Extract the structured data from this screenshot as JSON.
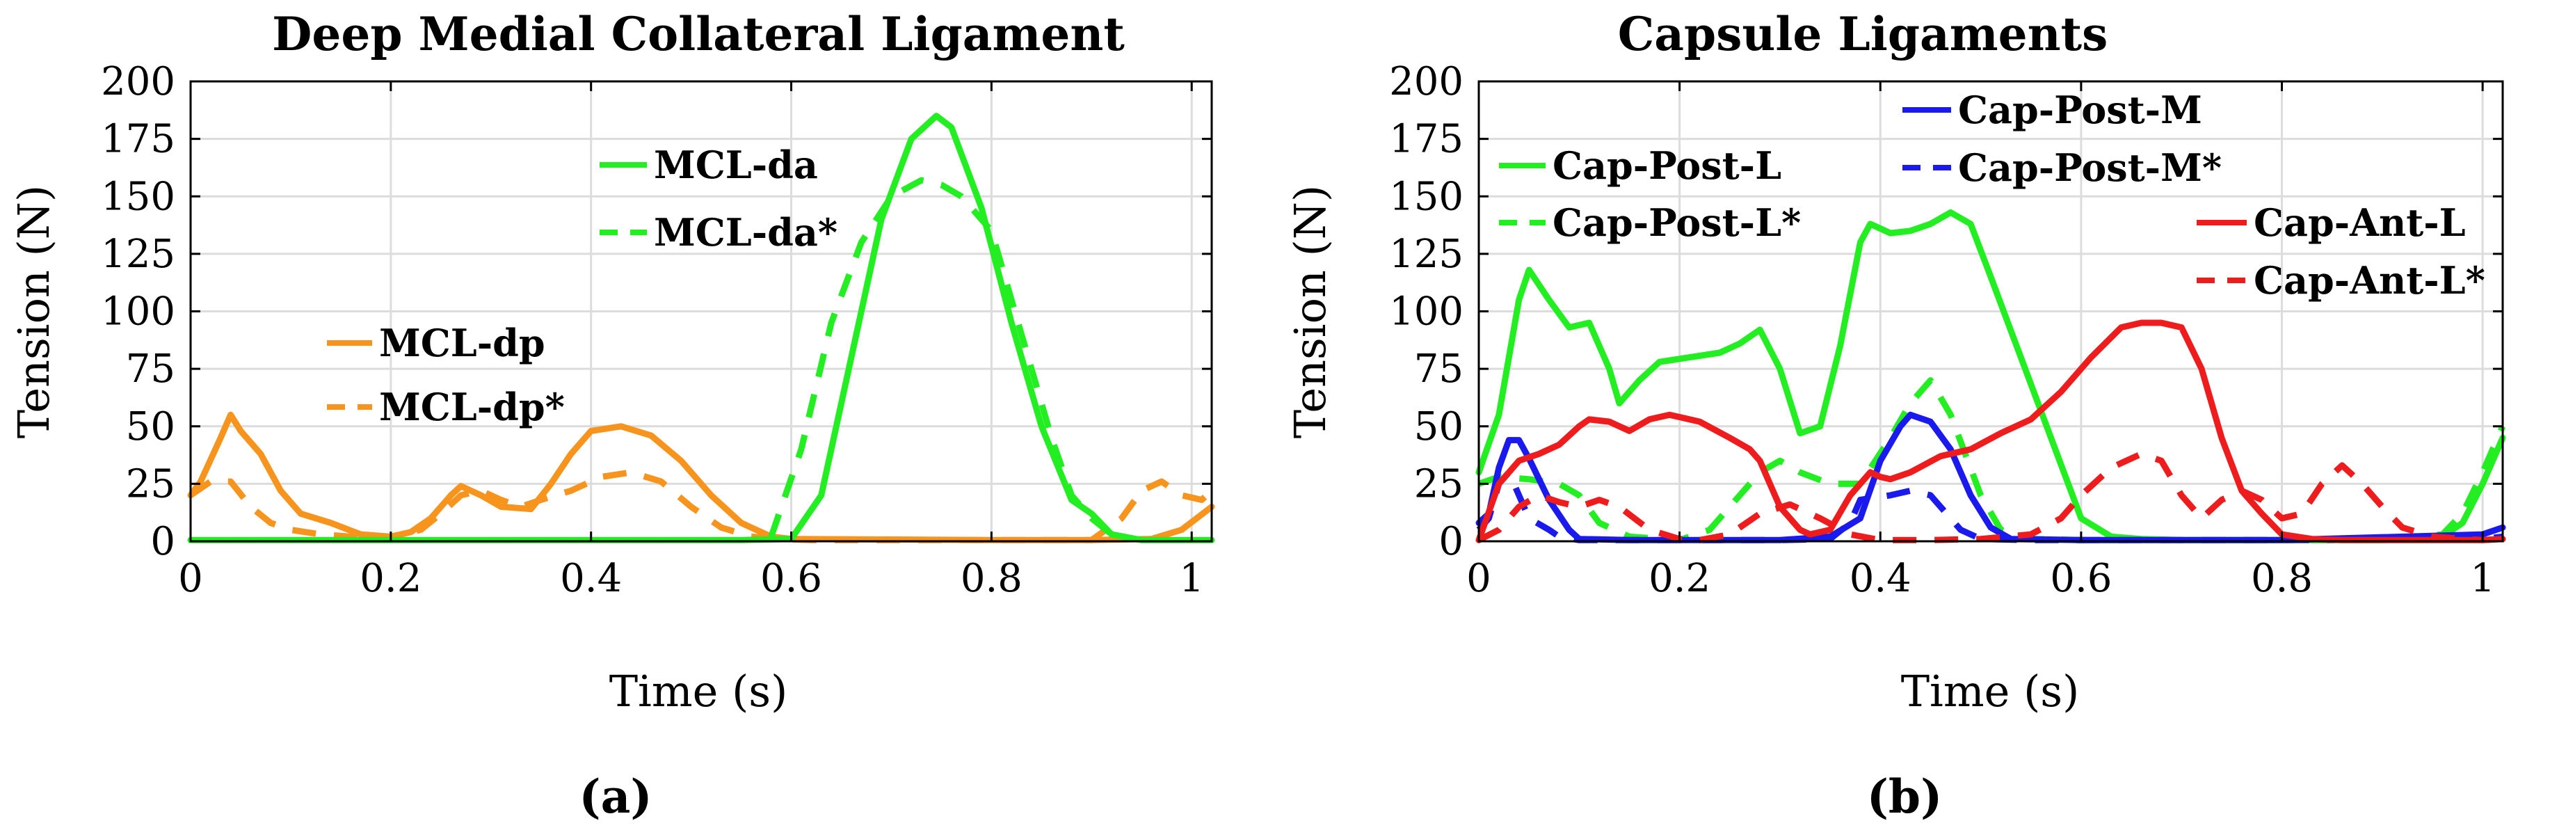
{
  "chart_data": [
    {
      "type": "line",
      "title": "Deep Medial Collateral Ligament",
      "xlabel": "Time (s)",
      "ylabel": "Tension (N)",
      "xlim": [
        0,
        1.02
      ],
      "ylim": [
        0,
        200
      ],
      "xticks": [
        0,
        0.2,
        0.4,
        0.6,
        0.8,
        1
      ],
      "xtick_labels": [
        "0",
        "0.2",
        "0.4",
        "0.6",
        "0.8",
        "1"
      ],
      "yticks": [
        0,
        25,
        50,
        75,
        100,
        125,
        150,
        175,
        200
      ],
      "ytick_labels": [
        "0",
        "25",
        "50",
        "75",
        "100",
        "125",
        "150",
        "175",
        "200"
      ],
      "grid": true,
      "panel_label": "(a)",
      "series": [
        {
          "name": "MCL-dp",
          "color": "#f7941d",
          "dash": "solid",
          "x": [
            0,
            0.01,
            0.03,
            0.04,
            0.05,
            0.07,
            0.09,
            0.11,
            0.14,
            0.17,
            0.2,
            0.22,
            0.24,
            0.26,
            0.27,
            0.29,
            0.31,
            0.34,
            0.36,
            0.38,
            0.4,
            0.43,
            0.46,
            0.49,
            0.52,
            0.55,
            0.58,
            0.6,
            0.8,
            0.9,
            0.96,
            0.99,
            1.02
          ],
          "y": [
            20,
            26,
            45,
            55,
            48,
            38,
            22,
            12,
            8,
            3,
            2,
            4,
            10,
            20,
            24,
            20,
            15,
            14,
            25,
            38,
            48,
            50,
            46,
            35,
            20,
            8,
            2,
            1,
            0.5,
            0.5,
            1,
            5,
            15
          ]
        },
        {
          "name": "MCL-dp*",
          "color": "#f7941d",
          "dash": "dashed",
          "x": [
            0,
            0.02,
            0.04,
            0.06,
            0.08,
            0.1,
            0.13,
            0.16,
            0.2,
            0.23,
            0.25,
            0.27,
            0.29,
            0.31,
            0.33,
            0.35,
            0.38,
            0.41,
            0.44,
            0.47,
            0.5,
            0.53,
            0.56,
            0.59,
            0.62,
            0.9,
            0.93,
            0.95,
            0.97,
            0.99,
            1.01,
            1.02
          ],
          "y": [
            20,
            26,
            26,
            15,
            8,
            5,
            3,
            2,
            2,
            5,
            12,
            20,
            22,
            18,
            15,
            18,
            22,
            28,
            30,
            26,
            15,
            6,
            2,
            1,
            0.5,
            0.5,
            10,
            22,
            26,
            20,
            18,
            22
          ]
        },
        {
          "name": "MCL-da",
          "color": "#22ee22",
          "dash": "solid",
          "x": [
            0,
            0.2,
            0.4,
            0.55,
            0.6,
            0.63,
            0.66,
            0.69,
            0.72,
            0.745,
            0.76,
            0.79,
            0.82,
            0.85,
            0.88,
            0.9,
            0.92,
            0.95,
            0.98,
            1.0,
            1.02
          ],
          "y": [
            0.5,
            0.5,
            0.5,
            0.5,
            1,
            20,
            80,
            140,
            175,
            185,
            180,
            145,
            95,
            50,
            18,
            12,
            3,
            0.5,
            0.5,
            0.5,
            0.5
          ]
        },
        {
          "name": "MCL-da*",
          "color": "#22ee22",
          "dash": "dashed",
          "x": [
            0.58,
            0.61,
            0.64,
            0.67,
            0.7,
            0.73,
            0.75,
            0.77,
            0.8,
            0.83,
            0.86,
            0.88,
            0.9,
            0.92,
            0.94
          ],
          "y": [
            2,
            40,
            95,
            130,
            150,
            157,
            155,
            150,
            135,
            90,
            45,
            20,
            10,
            3,
            1
          ]
        }
      ]
    },
    {
      "type": "line",
      "title": "Capsule Ligaments",
      "xlabel": "Time (s)",
      "ylabel": "Tension (N)",
      "xlim": [
        0,
        1.02
      ],
      "ylim": [
        0,
        200
      ],
      "xticks": [
        0,
        0.2,
        0.4,
        0.6,
        0.8,
        1
      ],
      "xtick_labels": [
        "0",
        "0.2",
        "0.4",
        "0.6",
        "0.8",
        "1"
      ],
      "yticks": [
        0,
        25,
        50,
        75,
        100,
        125,
        150,
        175,
        200
      ],
      "ytick_labels": [
        "0",
        "25",
        "50",
        "75",
        "100",
        "125",
        "150",
        "175",
        "200"
      ],
      "grid": true,
      "panel_label": "(b)",
      "series": [
        {
          "name": "Cap-Post-L",
          "color": "#22ee22",
          "dash": "solid",
          "x": [
            0,
            0.02,
            0.04,
            0.05,
            0.07,
            0.09,
            0.11,
            0.13,
            0.14,
            0.16,
            0.18,
            0.21,
            0.24,
            0.26,
            0.28,
            0.3,
            0.32,
            0.34,
            0.36,
            0.38,
            0.39,
            0.41,
            0.43,
            0.45,
            0.47,
            0.49,
            0.51,
            0.54,
            0.57,
            0.6,
            0.63,
            0.66,
            0.7,
            0.9,
            0.96,
            0.98,
            1.0,
            1.02
          ],
          "y": [
            30,
            55,
            105,
            118,
            105,
            93,
            95,
            75,
            60,
            70,
            78,
            80,
            82,
            86,
            92,
            75,
            47,
            50,
            85,
            130,
            138,
            134,
            135,
            138,
            143,
            138,
            115,
            80,
            45,
            10,
            2,
            1,
            0.5,
            0.5,
            2,
            8,
            25,
            45
          ]
        },
        {
          "name": "Cap-Post-L*",
          "color": "#22ee22",
          "dash": "dashed",
          "x": [
            0,
            0.02,
            0.05,
            0.08,
            0.1,
            0.12,
            0.15,
            0.2,
            0.23,
            0.26,
            0.28,
            0.3,
            0.32,
            0.35,
            0.38,
            0.41,
            0.43,
            0.45,
            0.47,
            0.5,
            0.52,
            0.55,
            0.6,
            0.9,
            0.96,
            0.98,
            1.0,
            1.02
          ],
          "y": [
            25,
            28,
            27,
            25,
            20,
            8,
            2,
            0.5,
            5,
            20,
            30,
            35,
            30,
            25,
            25,
            45,
            60,
            70,
            55,
            20,
            5,
            1,
            0.5,
            0.5,
            3,
            12,
            30,
            50
          ]
        },
        {
          "name": "Cap-Post-M",
          "color": "#1a1aee",
          "dash": "solid",
          "x": [
            0,
            0.01,
            0.02,
            0.03,
            0.04,
            0.05,
            0.07,
            0.09,
            0.1,
            0.15,
            0.3,
            0.35,
            0.38,
            0.4,
            0.42,
            0.43,
            0.45,
            0.47,
            0.49,
            0.51,
            0.53,
            0.6,
            0.8,
            1.0,
            1.02
          ],
          "y": [
            8,
            12,
            32,
            44,
            44,
            36,
            18,
            5,
            1,
            0.5,
            0.5,
            2,
            10,
            35,
            50,
            55,
            52,
            40,
            20,
            6,
            1,
            0.5,
            0.5,
            3,
            6
          ]
        },
        {
          "name": "Cap-Post-M*",
          "color": "#1a1aee",
          "dash": "dashed",
          "x": [
            0,
            0.01,
            0.02,
            0.03,
            0.05,
            0.07,
            0.08,
            0.1,
            0.2,
            0.3,
            0.35,
            0.37,
            0.38,
            0.41,
            0.43,
            0.45,
            0.46,
            0.48,
            0.5,
            0.55,
            0.8,
            1.0,
            1.02
          ],
          "y": [
            5,
            10,
            25,
            30,
            10,
            5,
            2,
            0.5,
            0.5,
            0.5,
            1,
            8,
            18,
            20,
            22,
            20,
            15,
            5,
            1,
            0.5,
            0.5,
            1,
            2
          ]
        },
        {
          "name": "Cap-Ant-L",
          "color": "#ee1c1c",
          "dash": "solid",
          "x": [
            0,
            0.02,
            0.04,
            0.06,
            0.08,
            0.1,
            0.11,
            0.13,
            0.15,
            0.17,
            0.19,
            0.22,
            0.25,
            0.27,
            0.28,
            0.3,
            0.32,
            0.33,
            0.35,
            0.37,
            0.39,
            0.4,
            0.41,
            0.43,
            0.46,
            0.49,
            0.52,
            0.55,
            0.58,
            0.61,
            0.64,
            0.66,
            0.68,
            0.7,
            0.72,
            0.74,
            0.76,
            0.78,
            0.8,
            0.83,
            0.86,
            1.0,
            1.02
          ],
          "y": [
            0.5,
            25,
            35,
            38,
            42,
            50,
            53,
            52,
            48,
            53,
            55,
            52,
            45,
            40,
            35,
            15,
            5,
            3,
            5,
            20,
            30,
            28,
            27,
            30,
            37,
            40,
            47,
            53,
            65,
            80,
            93,
            95,
            95,
            93,
            75,
            45,
            22,
            12,
            3,
            1,
            0.5,
            0.5,
            1
          ]
        },
        {
          "name": "Cap-Ant-L*",
          "color": "#ee1c1c",
          "dash": "dashed",
          "x": [
            0,
            0.02,
            0.04,
            0.06,
            0.08,
            0.1,
            0.12,
            0.14,
            0.17,
            0.2,
            0.22,
            0.25,
            0.28,
            0.31,
            0.34,
            0.37,
            0.4,
            0.45,
            0.5,
            0.55,
            0.58,
            0.6,
            0.63,
            0.66,
            0.68,
            0.7,
            0.72,
            0.74,
            0.76,
            0.78,
            0.8,
            0.82,
            0.84,
            0.86,
            0.88,
            0.9,
            0.92,
            0.95,
            1.0,
            1.02
          ],
          "y": [
            0.5,
            5,
            15,
            20,
            17,
            15,
            18,
            15,
            5,
            1,
            0.5,
            3,
            12,
            16,
            10,
            3,
            0.5,
            0.5,
            1,
            3,
            10,
            20,
            32,
            38,
            35,
            20,
            10,
            18,
            22,
            18,
            10,
            12,
            25,
            33,
            25,
            15,
            6,
            2,
            0.5,
            1
          ]
        }
      ]
    }
  ]
}
